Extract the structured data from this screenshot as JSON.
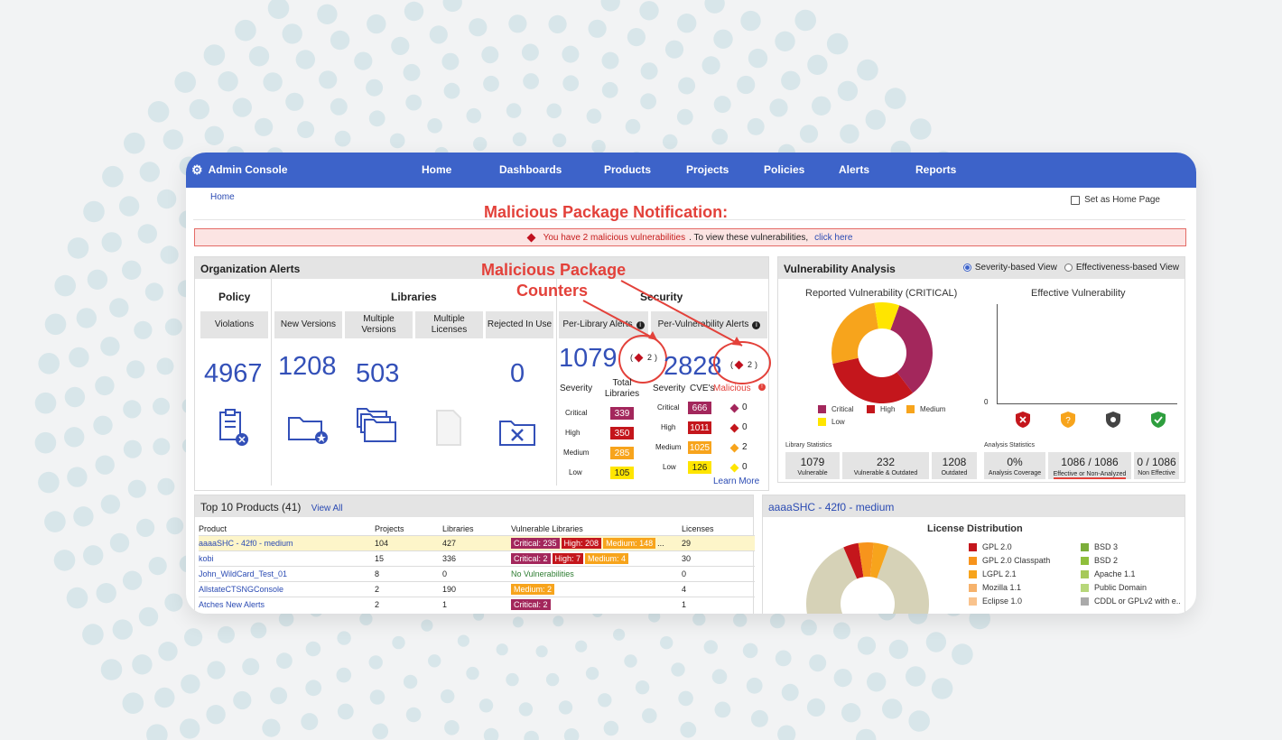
{
  "nav": {
    "brand": "Admin Console",
    "items": [
      "Home",
      "Dashboards",
      "Products",
      "Projects",
      "Policies",
      "Alerts",
      "Reports"
    ]
  },
  "breadcrumb": "Home",
  "home_page_label": "Set as Home Page",
  "annotations": {
    "notification": "Malicious Package Notification:",
    "counters_line1": "Malicious Package",
    "counters_line2": "Counters"
  },
  "banner": {
    "text": "You have 2 malicious vulnerabilities",
    "suffix": ". To view these vulnerabilities,",
    "link": "click here"
  },
  "org_alerts": {
    "title": "Organization Alerts",
    "policy": {
      "header": "Policy",
      "col": "Violations",
      "value": "4967"
    },
    "libraries": {
      "header": "Libraries",
      "cols": [
        "New Versions",
        "Multiple Versions",
        "Multiple Licenses",
        "Rejected In Use"
      ],
      "values": [
        "1208",
        "503",
        "",
        "0"
      ]
    },
    "security": {
      "header": "Security",
      "per_library": {
        "label": "Per-Library Alerts",
        "value": "1079",
        "malicious": "2",
        "total_label": "Total Libraries"
      },
      "per_vuln": {
        "label": "Per-Vulnerability Alerts",
        "value": "2828",
        "malicious": "2",
        "cves_label": "CVE's",
        "malicious_label": "Malicious"
      },
      "severity_label": "Severity",
      "severities": [
        "Critical",
        "High",
        "Medium",
        "Low"
      ],
      "library_counts": [
        "339",
        "350",
        "285",
        "105"
      ],
      "cve_counts": [
        "666",
        "1011",
        "1025",
        "126"
      ],
      "malicious_counts": [
        "0",
        "0",
        "2",
        "0"
      ],
      "learn_more": "Learn More"
    }
  },
  "vuln_analysis": {
    "title": "Vulnerability Analysis",
    "modes": [
      "Severity-based View",
      "Effectiveness-based View"
    ],
    "selected_mode": "Severity-based View",
    "reported_title": "Reported Vulnerability (CRITICAL)",
    "effective_title": "Effective Vulnerability",
    "legend": [
      "Critical",
      "High",
      "Medium",
      "Low"
    ],
    "zero_label": "0",
    "library_stats_label": "Library Statistics",
    "library_stats": [
      {
        "value": "1079",
        "label": "Vulnerable"
      },
      {
        "value": "232",
        "label": "Vulnerable & Outdated"
      },
      {
        "value": "1208",
        "label": "Outdated"
      }
    ],
    "analysis_stats_label": "Analysis Statistics",
    "analysis_stats": [
      {
        "value": "0%",
        "label": "Analysis Coverage"
      },
      {
        "value": "1086 / 1086",
        "label": "Effective or Non-Analyzed"
      },
      {
        "value": "0 / 1086",
        "label": "Non Effective"
      }
    ]
  },
  "top_products": {
    "title": "Top 10 Products (41)",
    "view_all": "View All",
    "columns": [
      "Product",
      "Projects",
      "Libraries",
      "Vulnerable Libraries",
      "Licenses"
    ],
    "rows": [
      {
        "name": "aaaaSHC - 42f0 - medium",
        "projects": "104",
        "libraries": "427",
        "tags": [
          {
            "t": "Critical: 235",
            "c": "crit"
          },
          {
            "t": "High: 208",
            "c": "high"
          },
          {
            "t": "Medium: 148",
            "c": "med"
          }
        ],
        "more": "...",
        "licenses": "29"
      },
      {
        "name": "kobi",
        "projects": "15",
        "libraries": "336",
        "tags": [
          {
            "t": "Critical: 2",
            "c": "crit"
          },
          {
            "t": "High: 7",
            "c": "high"
          },
          {
            "t": "Medium: 4",
            "c": "med"
          }
        ],
        "more": "",
        "licenses": "30"
      },
      {
        "name": "John_WildCard_Test_01",
        "projects": "8",
        "libraries": "0",
        "tags": [],
        "novuln": "No Vulnerabilities",
        "more": "",
        "licenses": "0"
      },
      {
        "name": "AllstateCTSNGConsole",
        "projects": "2",
        "libraries": "190",
        "tags": [
          {
            "t": "Medium: 2",
            "c": "med"
          }
        ],
        "more": "",
        "licenses": "4"
      },
      {
        "name": "Atches New Alerts",
        "projects": "2",
        "libraries": "1",
        "tags": [
          {
            "t": "Critical: 2",
            "c": "crit"
          }
        ],
        "more": "",
        "licenses": "1"
      }
    ]
  },
  "license_panel": {
    "title": "aaaaSHC - 42f0 - medium",
    "chart_title": "License Distribution",
    "legend_left": [
      "GPL 2.0",
      "GPL 2.0 Classpath",
      "LGPL 2.1",
      "Mozilla 1.1",
      "Eclipse 1.0"
    ],
    "legend_right": [
      "BSD 3",
      "BSD 2",
      "Apache 1.1",
      "Public Domain",
      "CDDL or GPLv2 with e.."
    ]
  },
  "colors": {
    "nav": "#3d63c9",
    "critical": "#a3275c",
    "high": "#c4161c",
    "medium": "#f7a41c",
    "low": "#ffe500",
    "link": "#2b4bb3",
    "annotation": "#e3413a"
  },
  "chart_data": [
    {
      "type": "pie",
      "title": "Reported Vulnerability (CRITICAL)",
      "categories": [
        "Critical",
        "High",
        "Medium",
        "Low"
      ],
      "values": [
        34,
        32,
        26,
        8
      ]
    },
    {
      "type": "pie",
      "title": "License Distribution",
      "categories": [
        "Other",
        "GPL 2.0",
        "GPL 2.0 Classpath",
        "LGPL 2.1"
      ],
      "values": [
        88,
        4,
        4,
        4
      ]
    }
  ]
}
